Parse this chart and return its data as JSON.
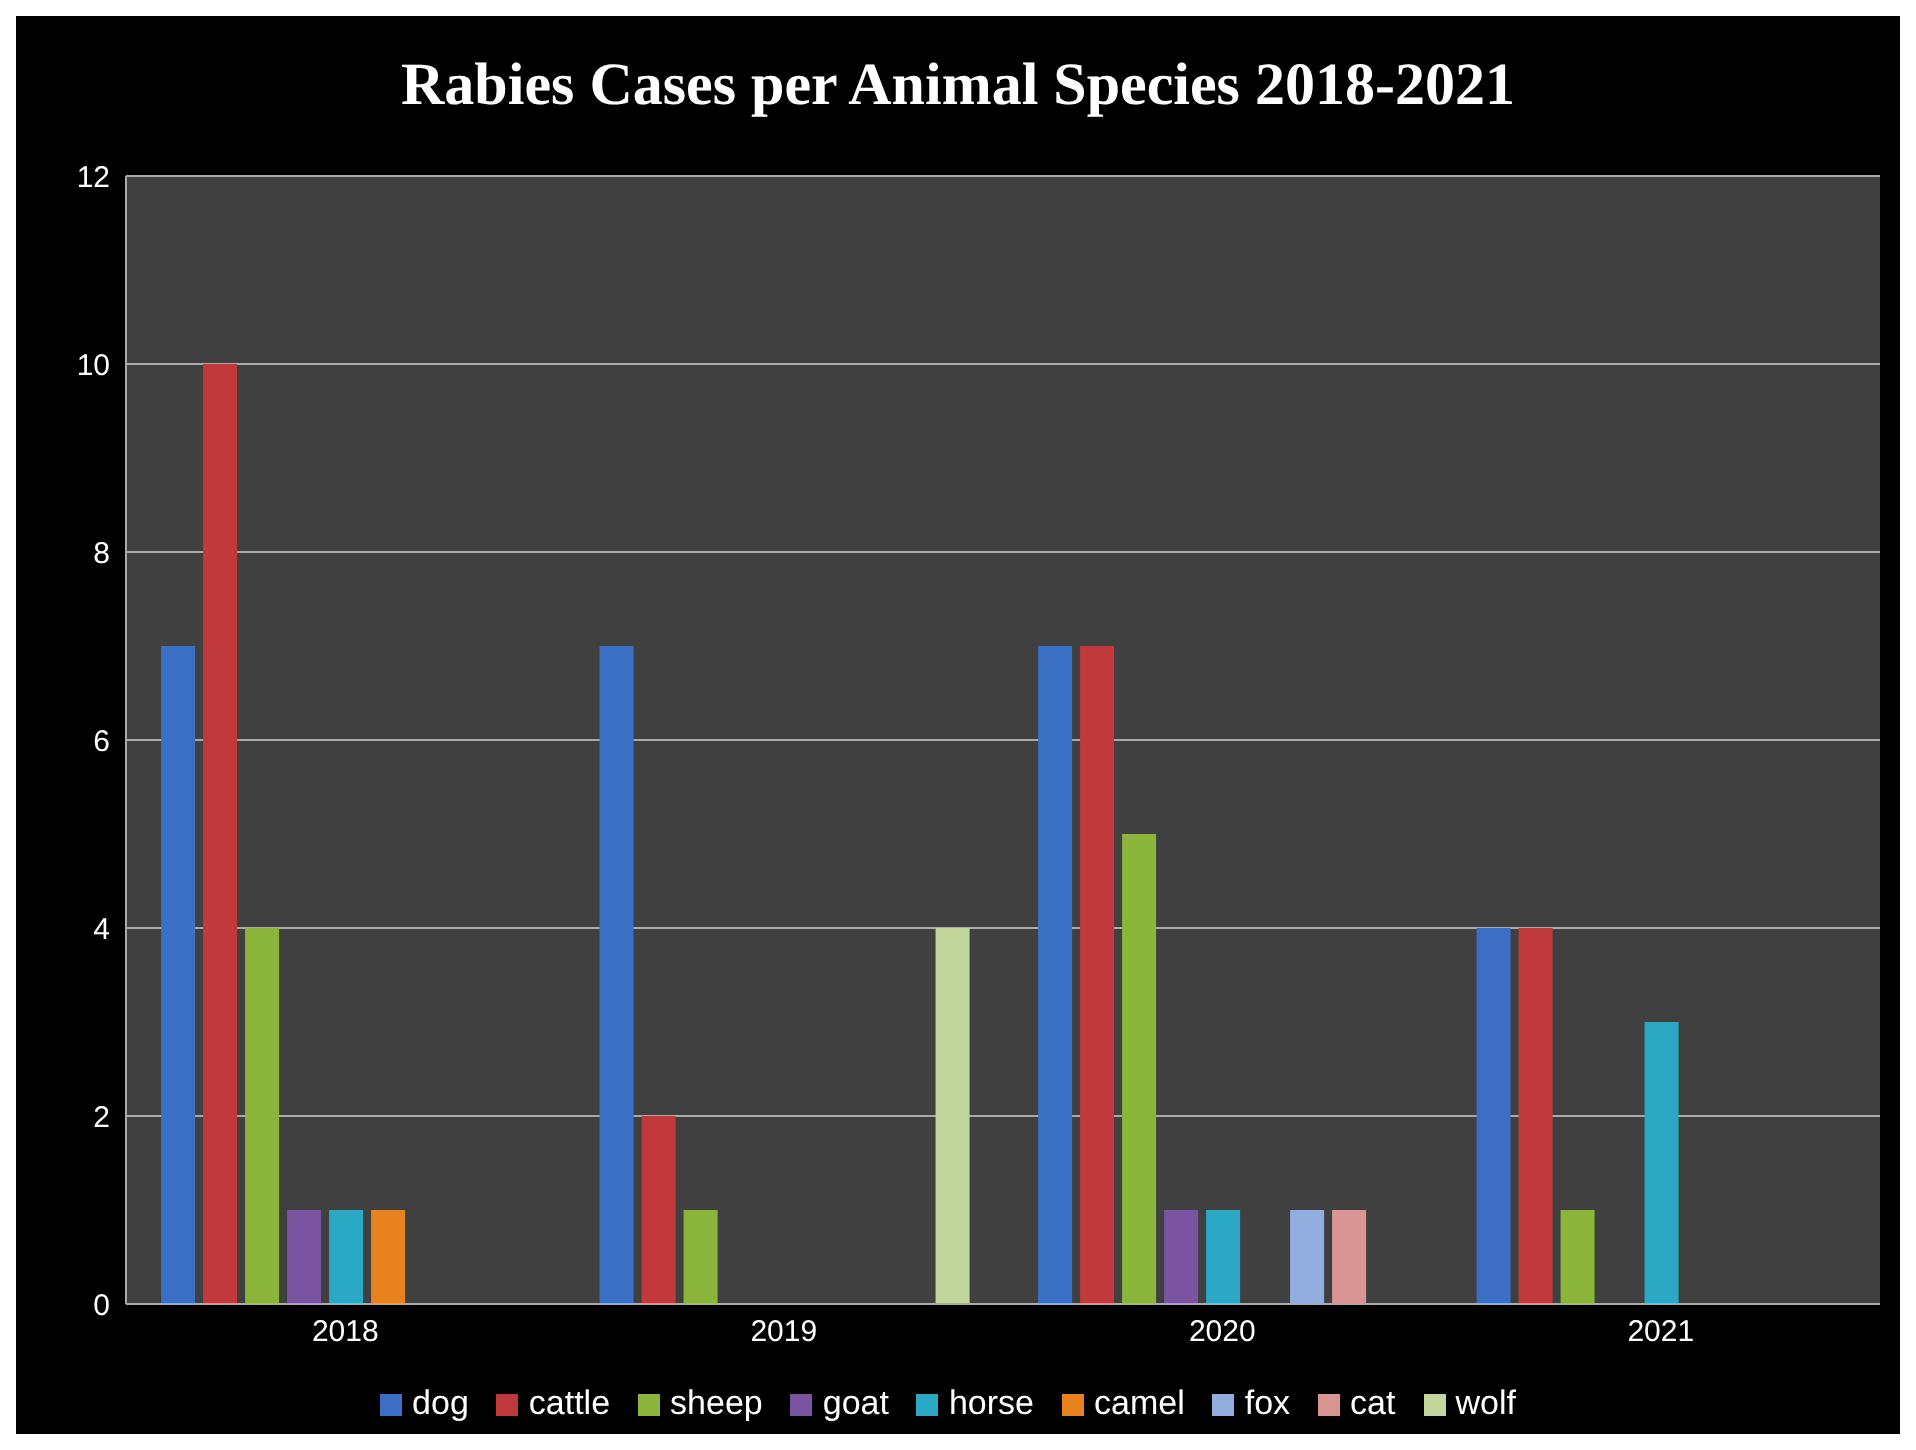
{
  "chart_data": {
    "type": "bar",
    "title": "Rabies Cases per Animal Species 2018-2021",
    "categories": [
      "2018",
      "2019",
      "2020",
      "2021"
    ],
    "series": [
      {
        "name": "dog",
        "color": "#3a6fc4",
        "values": [
          7,
          7,
          7,
          4
        ]
      },
      {
        "name": "cattle",
        "color": "#c0393b",
        "values": [
          10,
          2,
          7,
          4
        ]
      },
      {
        "name": "sheep",
        "color": "#8ab53a",
        "values": [
          4,
          1,
          5,
          1
        ]
      },
      {
        "name": "goat",
        "color": "#7a54a0",
        "values": [
          1,
          0,
          1,
          0
        ]
      },
      {
        "name": "horse",
        "color": "#2aa8c4",
        "values": [
          1,
          0,
          1,
          3
        ]
      },
      {
        "name": "camel",
        "color": "#e8821e",
        "values": [
          1,
          0,
          0,
          0
        ]
      },
      {
        "name": "fox",
        "color": "#92aede",
        "values": [
          0,
          0,
          1,
          0
        ]
      },
      {
        "name": "cat",
        "color": "#d99594",
        "values": [
          0,
          0,
          1,
          0
        ]
      },
      {
        "name": "wolf",
        "color": "#c3d69b",
        "values": [
          0,
          4,
          0,
          0
        ]
      }
    ],
    "ylim": [
      0,
      12
    ],
    "yticks": [
      0,
      2,
      4,
      6,
      8,
      10,
      12
    ],
    "grid": "y",
    "legend": "bottom"
  }
}
